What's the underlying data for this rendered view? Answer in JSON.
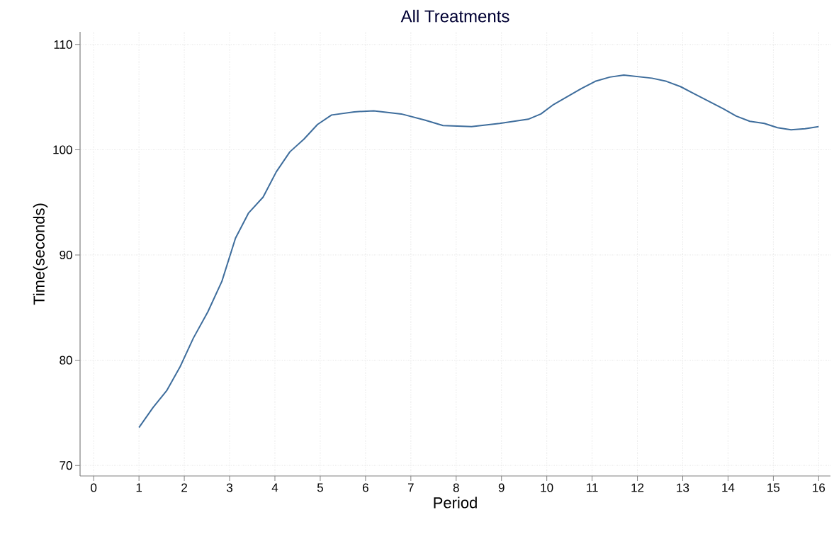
{
  "chart_data": {
    "type": "line",
    "title": "All Treatments",
    "xlabel": "Period",
    "ylabel": "Time(seconds)",
    "x": [
      1,
      1.31,
      1.61,
      1.91,
      2.2,
      2.52,
      2.83,
      3.13,
      3.42,
      3.74,
      4.03,
      4.33,
      4.64,
      4.94,
      5.25,
      5.75,
      6.18,
      6.79,
      7.32,
      7.71,
      8.34,
      8.96,
      9.59,
      9.87,
      10.15,
      10.76,
      11.07,
      11.39,
      11.7,
      12.32,
      12.64,
      12.95,
      13.26,
      13.89,
      14.18,
      14.48,
      14.8,
      15.09,
      15.39,
      15.7,
      16
    ],
    "values": [
      73.6,
      75.5,
      77.1,
      79.4,
      82.1,
      84.6,
      87.5,
      91.6,
      94.0,
      95.5,
      97.9,
      99.8,
      101.0,
      102.4,
      103.3,
      103.6,
      103.7,
      103.4,
      102.8,
      102.3,
      102.2,
      102.5,
      102.9,
      103.4,
      104.3,
      105.8,
      106.5,
      106.9,
      107.1,
      106.8,
      106.5,
      106.0,
      105.3,
      103.9,
      103.2,
      102.7,
      102.5,
      102.1,
      101.9,
      102.0,
      102.2
    ],
    "color": "#3e6d9c",
    "xlim": [
      -0.3,
      16.26
    ],
    "ylim": [
      69,
      111.2
    ],
    "xticks": [
      0,
      1,
      2,
      3,
      4,
      5,
      6,
      7,
      8,
      9,
      10,
      11,
      12,
      13,
      14,
      15,
      16
    ],
    "yticks": [
      70,
      80,
      90,
      100,
      110
    ],
    "grid": true,
    "marker": "none",
    "line_style": "solid"
  }
}
